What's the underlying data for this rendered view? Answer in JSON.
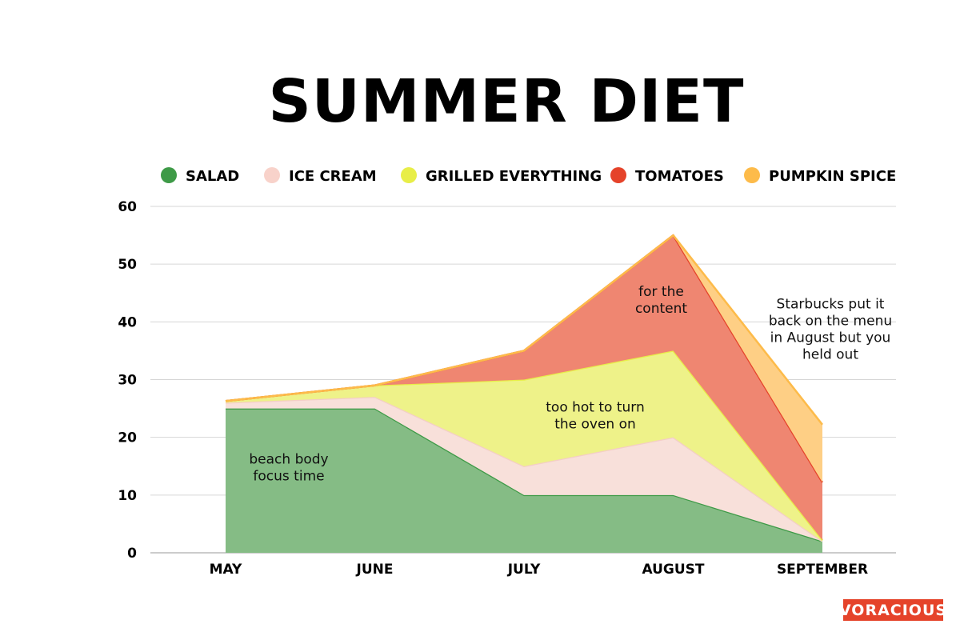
{
  "chart_data": {
    "type": "area",
    "stacked": true,
    "title": "SUMMER DIET",
    "categories": [
      "MAY",
      "JUNE",
      "JULY",
      "AUGUST",
      "SEPTEMBER"
    ],
    "series": [
      {
        "name": "SALAD",
        "values": [
          25,
          25,
          10,
          10,
          2
        ],
        "color": "#85bc85",
        "stroke": "#3e9a47",
        "legend_color": "#3e9a47"
      },
      {
        "name": "ICE CREAM",
        "values": [
          1,
          2,
          5,
          10,
          0
        ],
        "color": "#f8e0da",
        "stroke": "#f4cec6",
        "legend_color": "#f8d2ca"
      },
      {
        "name": "GRILLED EVERYTHING",
        "values": [
          0.3,
          2,
          15,
          15,
          0.2
        ],
        "color": "#eef289",
        "stroke": "#e8ee48",
        "legend_color": "#e8ee48"
      },
      {
        "name": "TOMATOES",
        "values": [
          0,
          0,
          5,
          20,
          10
        ],
        "color": "#ef8671",
        "stroke": "#e5432a",
        "legend_color": "#e5432a"
      },
      {
        "name": "PUMPKIN SPICE",
        "values": [
          0,
          0,
          0,
          0,
          10
        ],
        "color": "#fecf85",
        "stroke": "#fdbb4a",
        "legend_color": "#fdbb4a"
      }
    ],
    "ylim": [
      0,
      60
    ],
    "yticks": [
      0,
      10,
      20,
      30,
      40,
      50,
      60
    ],
    "grid": true,
    "legend_position": "top",
    "annotations": [
      {
        "lines": [
          "beach body",
          "focus time"
        ],
        "x": "MAY",
        "y": 14
      },
      {
        "lines": [
          "too hot to turn",
          "the oven on"
        ],
        "x": "JULY",
        "y": 23
      },
      {
        "lines": [
          "for the",
          "content"
        ],
        "x": "AUGUST",
        "y": 43
      },
      {
        "lines": [
          "Starbucks put it",
          "back on the menu",
          "in August but you",
          "held out"
        ],
        "x": "SEPTEMBER",
        "y": 38
      }
    ]
  },
  "logo": "VORACIOUS"
}
